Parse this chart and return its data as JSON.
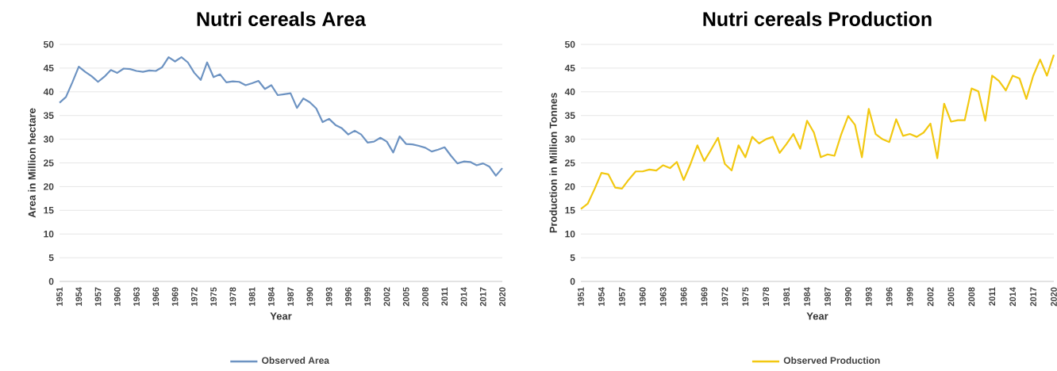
{
  "chart_data": [
    {
      "type": "line",
      "title": "Nutri cereals Area",
      "xlabel": "Year",
      "ylabel": "Area in Million hectare",
      "x": [
        1951,
        1952,
        1953,
        1954,
        1955,
        1956,
        1957,
        1958,
        1959,
        1960,
        1961,
        1962,
        1963,
        1964,
        1965,
        1966,
        1967,
        1968,
        1969,
        1970,
        1971,
        1972,
        1973,
        1974,
        1975,
        1976,
        1977,
        1978,
        1979,
        1980,
        1981,
        1982,
        1983,
        1984,
        1985,
        1986,
        1987,
        1988,
        1989,
        1990,
        1991,
        1992,
        1993,
        1994,
        1995,
        1996,
        1997,
        1998,
        1999,
        2000,
        2001,
        2002,
        2003,
        2004,
        2005,
        2006,
        2007,
        2008,
        2009,
        2010,
        2011,
        2012,
        2013,
        2014,
        2015,
        2016,
        2017,
        2018,
        2019,
        2020
      ],
      "xlim": [
        1951,
        2020
      ],
      "xticks": [
        1951,
        1954,
        1957,
        1960,
        1963,
        1966,
        1969,
        1972,
        1975,
        1978,
        1981,
        1984,
        1987,
        1990,
        1993,
        1996,
        1999,
        2002,
        2005,
        2008,
        2011,
        2014,
        2017,
        2020
      ],
      "ylim": [
        0,
        50
      ],
      "yticks": [
        0,
        5,
        10,
        15,
        20,
        25,
        30,
        35,
        40,
        45,
        50
      ],
      "grid": "y",
      "legend": "bottom",
      "line_style": "solid",
      "series": [
        {
          "name": "Observed Area",
          "color": "#6d93c2",
          "values": [
            37.7,
            38.9,
            42,
            45.3,
            44.2,
            43.3,
            42.1,
            43.2,
            44.6,
            44,
            44.9,
            44.8,
            44.4,
            44.2,
            44.5,
            44.4,
            45.2,
            47.3,
            46.4,
            47.3,
            46.2,
            44,
            42.5,
            46.2,
            43.1,
            43.7,
            42,
            42.2,
            42.1,
            41.4,
            41.8,
            42.3,
            40.6,
            41.4,
            39.3,
            39.5,
            39.7,
            36.6,
            38.6,
            37.8,
            36.5,
            33.6,
            34.3,
            33,
            32.3,
            31,
            31.8,
            31,
            29.3,
            29.5,
            30.3,
            29.5,
            27.2,
            30.6,
            29,
            28.9,
            28.6,
            28.2,
            27.4,
            27.8,
            28.3,
            26.5,
            24.9,
            25.3,
            25.2,
            24.5,
            24.9,
            24.2,
            22.3,
            23.9
          ]
        }
      ]
    },
    {
      "type": "line",
      "title": "Nutri cereals Production",
      "xlabel": "Year",
      "ylabel": "Production in Million Tonnes",
      "x": [
        1951,
        1952,
        1953,
        1954,
        1955,
        1956,
        1957,
        1958,
        1959,
        1960,
        1961,
        1962,
        1963,
        1964,
        1965,
        1966,
        1967,
        1968,
        1969,
        1970,
        1971,
        1972,
        1973,
        1974,
        1975,
        1976,
        1977,
        1978,
        1979,
        1980,
        1981,
        1982,
        1983,
        1984,
        1985,
        1986,
        1987,
        1988,
        1989,
        1990,
        1991,
        1992,
        1993,
        1994,
        1995,
        1996,
        1997,
        1998,
        1999,
        2000,
        2001,
        2002,
        2003,
        2004,
        2005,
        2006,
        2007,
        2008,
        2009,
        2010,
        2011,
        2012,
        2013,
        2014,
        2015,
        2016,
        2017,
        2018,
        2019,
        2020
      ],
      "xlim": [
        1951,
        2020
      ],
      "xticks": [
        1951,
        1954,
        1957,
        1960,
        1963,
        1966,
        1969,
        1972,
        1975,
        1978,
        1981,
        1984,
        1987,
        1990,
        1993,
        1996,
        1999,
        2002,
        2005,
        2008,
        2011,
        2014,
        2017,
        2020
      ],
      "ylim": [
        0,
        50
      ],
      "yticks": [
        0,
        5,
        10,
        15,
        20,
        25,
        30,
        35,
        40,
        45,
        50
      ],
      "grid": "y",
      "legend": "bottom",
      "line_style": "solid",
      "series": [
        {
          "name": "Observed Production",
          "color": "#f2c811",
          "values": [
            15.3,
            16.4,
            19.5,
            22.9,
            22.6,
            19.8,
            19.6,
            21.5,
            23.2,
            23.2,
            23.6,
            23.4,
            24.5,
            23.9,
            25.2,
            21.4,
            24.8,
            28.7,
            25.4,
            27.8,
            30.3,
            24.8,
            23.4,
            28.7,
            26.2,
            30.5,
            29.1,
            30,
            30.5,
            27.1,
            29,
            31.1,
            28,
            33.9,
            31.4,
            26.2,
            26.8,
            26.5,
            31.1,
            34.9,
            33,
            26.2,
            36.4,
            31.1,
            30,
            29.4,
            34.2,
            30.7,
            31.1,
            30.5,
            31.4,
            33.3,
            26,
            37.5,
            33.7,
            34,
            34,
            40.7,
            40.1,
            33.9,
            43.4,
            42.3,
            40.3,
            43.4,
            42.8,
            38.5,
            43.4,
            46.8,
            43.4,
            47.8
          ]
        }
      ]
    }
  ]
}
